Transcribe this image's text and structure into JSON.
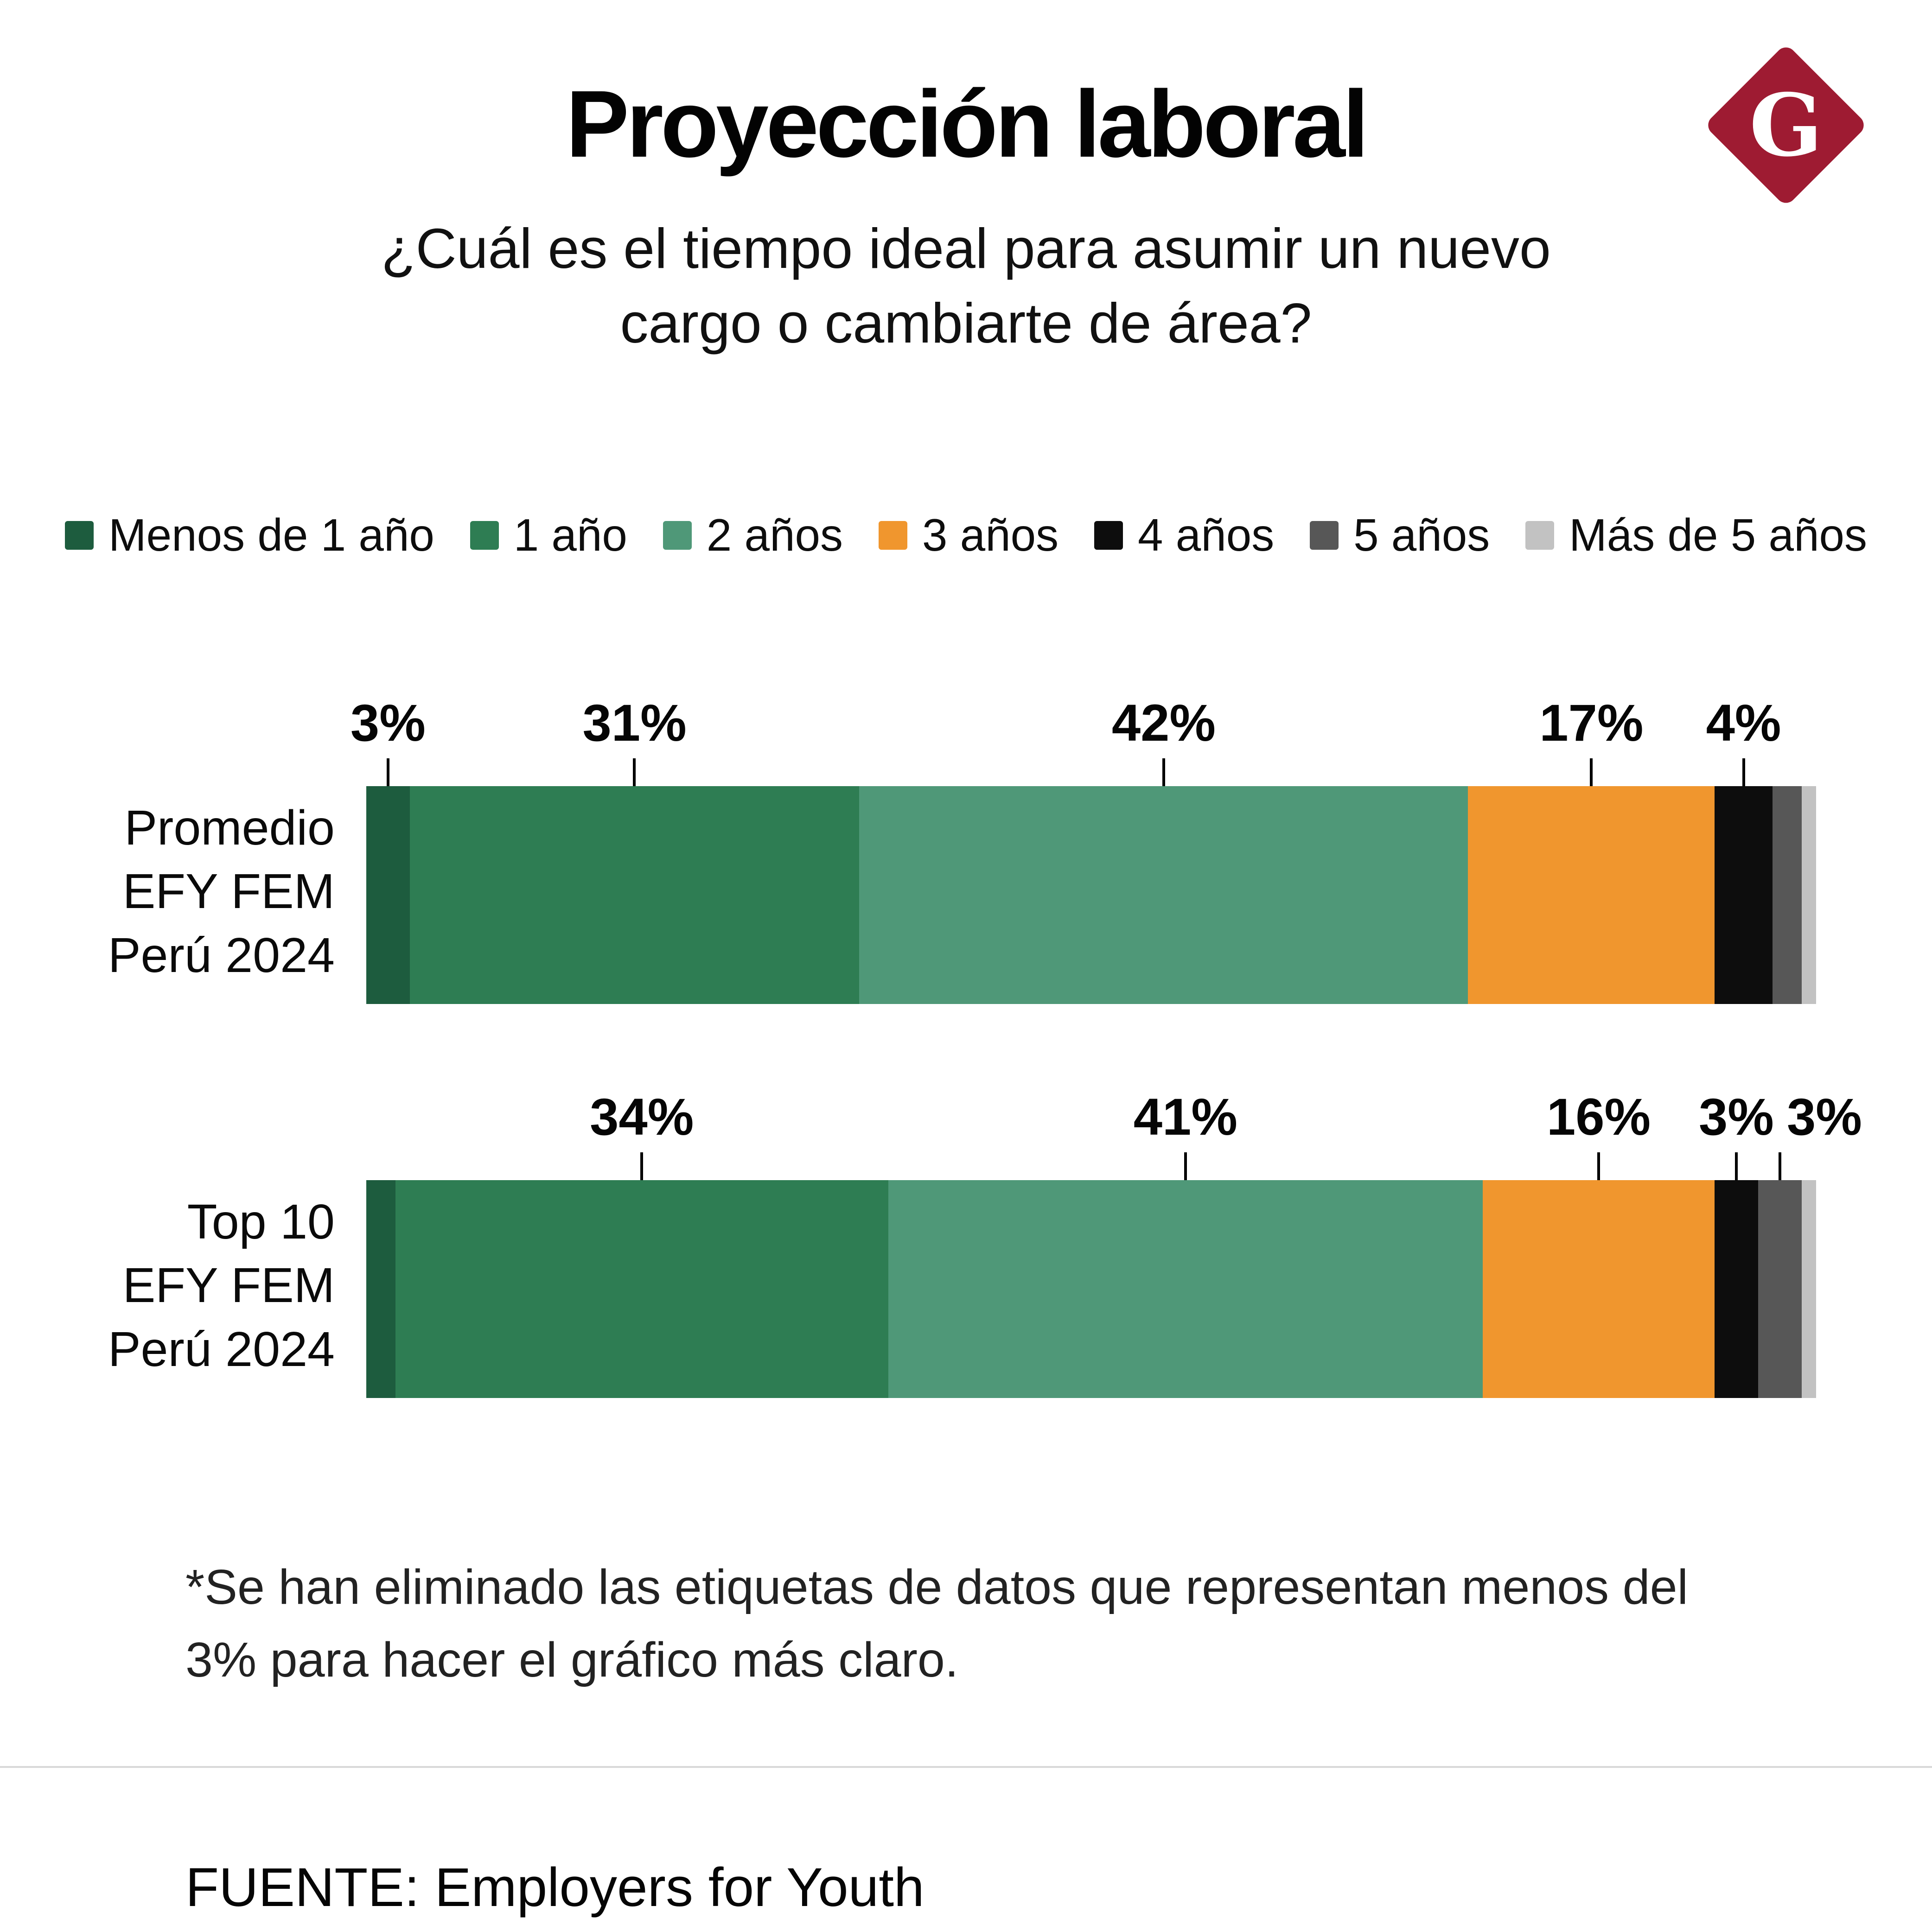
{
  "header": {
    "title": "Proyección laboral",
    "subtitle_lines": [
      "¿Cuál es el tiempo ideal para asumir un nuevo",
      "cargo o cambiarte de área?"
    ],
    "logo": {
      "letter": "G",
      "color": "#9e1b32"
    }
  },
  "chart_data": {
    "type": "bar",
    "orientation": "horizontal",
    "stacked": true,
    "unit": "%",
    "xlim": [
      0,
      100
    ],
    "legend_position": "top",
    "categories": [
      "Menos de 1 año",
      "1 año",
      "2 años",
      "3 años",
      "4 años",
      "5 años",
      "Más de 5 años"
    ],
    "colors": [
      "#1d5c3e",
      "#2e7d53",
      "#4f9878",
      "#f0962e",
      "#0d0d0d",
      "#575757",
      "#c2c2c2"
    ],
    "series": [
      {
        "name": [
          "Promedio",
          "EFY FEM",
          "Perú 2024"
        ],
        "values": [
          3,
          31,
          42,
          17,
          4,
          2,
          1
        ],
        "labels": [
          "3%",
          "31%",
          "42%",
          "17%",
          "4%",
          null,
          null
        ]
      },
      {
        "name": [
          "Top 10",
          "EFY FEM",
          "Perú 2024"
        ],
        "values": [
          2,
          34,
          41,
          16,
          3,
          3,
          1
        ],
        "labels": [
          null,
          "34%",
          "41%",
          "16%",
          "3%",
          "3%",
          null
        ]
      }
    ]
  },
  "footnote": "*Se han eliminado las etiquetas de datos que representan menos del 3% para hacer el gráfico más claro.",
  "source": "FUENTE: Employers for Youth"
}
